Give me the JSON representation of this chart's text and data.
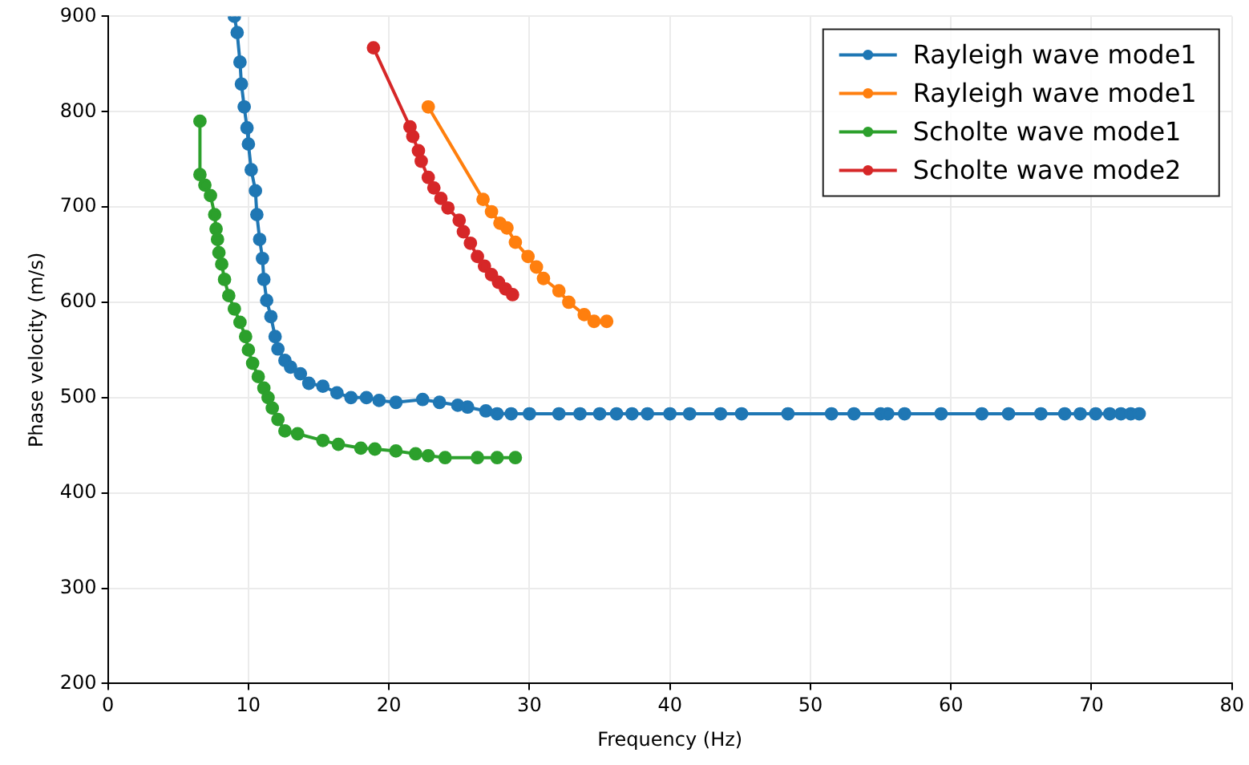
{
  "chart_data": {
    "type": "line",
    "xlabel": "Frequency (Hz)",
    "ylabel": "Phase velocity (m/s)",
    "xlim": [
      0,
      80
    ],
    "xticks": [
      0,
      10,
      20,
      30,
      40,
      50,
      60,
      70,
      80
    ],
    "ylim": [
      200,
      900
    ],
    "yticks": [
      200,
      300,
      400,
      500,
      600,
      700,
      800,
      900
    ],
    "grid": true,
    "legend": "top right",
    "marker": "circle",
    "line_style": "solid",
    "series": [
      {
        "name": "Rayleigh wave mode1",
        "color": "#1f77b4",
        "x": [
          9.0,
          9.2,
          9.4,
          9.5,
          9.7,
          9.9,
          10.0,
          10.2,
          10.5,
          10.6,
          10.8,
          11.0,
          11.1,
          11.3,
          11.6,
          11.9,
          12.1,
          12.6,
          13.0,
          13.7,
          14.3,
          15.3,
          16.3,
          17.3,
          18.4,
          19.3,
          20.5,
          22.4,
          23.6,
          24.9,
          25.6,
          26.9,
          27.7,
          28.7,
          30.0,
          32.1,
          33.6,
          35.0,
          36.2,
          37.3,
          38.4,
          40.0,
          41.4,
          43.6,
          45.1,
          48.4,
          51.5,
          53.1,
          55.0,
          55.5,
          56.7,
          59.3,
          62.2,
          64.1,
          66.4,
          68.1,
          69.2,
          70.3,
          71.3,
          72.1,
          72.8,
          73.4
        ],
        "values": [
          900,
          883,
          852,
          829,
          805,
          783,
          766,
          739,
          717,
          692,
          666,
          646,
          624,
          602,
          585,
          564,
          551,
          539,
          532,
          525,
          515,
          512,
          505,
          500,
          500,
          497,
          495,
          498,
          495,
          492,
          490,
          486,
          483,
          483,
          483,
          483,
          483,
          483,
          483,
          483,
          483,
          483,
          483,
          483,
          483,
          483,
          483,
          483,
          483,
          483,
          483,
          483,
          483,
          483,
          483,
          483,
          483,
          483,
          483,
          483,
          483,
          483
        ]
      },
      {
        "name": "Rayleigh wave mode1",
        "color": "#ff7f0e",
        "x": [
          22.8,
          26.7,
          27.3,
          27.9,
          28.4,
          29.0,
          29.9,
          30.5,
          31.0,
          32.1,
          32.8,
          33.9,
          34.6,
          35.5
        ],
        "values": [
          805,
          708,
          695,
          683,
          678,
          663,
          648,
          637,
          625,
          612,
          600,
          587,
          580,
          580
        ]
      },
      {
        "name": "Scholte wave mode1",
        "color": "#2ca02c",
        "x": [
          6.55,
          6.55,
          6.9,
          7.3,
          7.6,
          7.7,
          7.8,
          7.9,
          8.1,
          8.3,
          8.6,
          9.0,
          9.4,
          9.8,
          10.0,
          10.3,
          10.7,
          11.1,
          11.4,
          11.7,
          12.1,
          12.6,
          13.5,
          15.3,
          16.4,
          18.0,
          19.0,
          20.5,
          21.9,
          22.8,
          24.0,
          26.3,
          27.7,
          29.0
        ],
        "values": [
          790,
          734,
          723,
          712,
          692,
          677,
          666,
          652,
          640,
          624,
          607,
          593,
          579,
          564,
          550,
          536,
          522,
          510,
          500,
          489,
          477,
          465,
          462,
          455,
          451,
          447,
          446,
          444,
          441,
          439,
          437,
          437,
          437,
          437
        ]
      },
      {
        "name": "Scholte wave mode2",
        "color": "#d62728",
        "x": [
          18.9,
          21.5,
          21.7,
          22.1,
          22.3,
          22.8,
          23.2,
          23.7,
          24.2,
          25.0,
          25.3,
          25.8,
          26.3,
          26.8,
          27.3,
          27.8,
          28.3,
          28.8
        ],
        "values": [
          867,
          784,
          774,
          759,
          748,
          731,
          720,
          709,
          699,
          686,
          674,
          662,
          648,
          638,
          629,
          621,
          614,
          608
        ]
      }
    ]
  }
}
